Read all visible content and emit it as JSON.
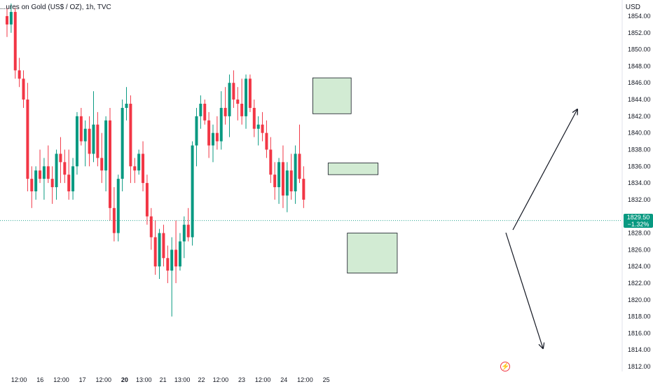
{
  "header": {
    "title": "...ures on Gold (US$ / OZ), 1h, TVC",
    "currency": "USD"
  },
  "price_badge": {
    "price": "1829.50",
    "change": "−1.32%"
  },
  "chart_data": {
    "type": "candlestick",
    "title": "...ures on Gold (US$ / OZ), 1h, TVC",
    "ylabel": "USD",
    "ylim": [
      1811,
      1856
    ],
    "yticks": [
      1812,
      1814,
      1816,
      1818,
      1820,
      1822,
      1824,
      1826,
      1828,
      1830,
      1832,
      1834,
      1836,
      1838,
      1840,
      1842,
      1844,
      1846,
      1848,
      1850,
      1852,
      1854
    ],
    "xticks": [
      {
        "label": "12:00",
        "x": 3.5,
        "bold": false
      },
      {
        "label": "16",
        "x": 9,
        "bold": false
      },
      {
        "label": "12:00",
        "x": 14.5,
        "bold": false
      },
      {
        "label": "17",
        "x": 20,
        "bold": false
      },
      {
        "label": "12:00",
        "x": 25.5,
        "bold": false
      },
      {
        "label": "20",
        "x": 31,
        "bold": true
      },
      {
        "label": "13:00",
        "x": 36,
        "bold": false
      },
      {
        "label": "21",
        "x": 41,
        "bold": false
      },
      {
        "label": "13:00",
        "x": 46,
        "bold": false
      },
      {
        "label": "22",
        "x": 51,
        "bold": false
      },
      {
        "label": "12:00",
        "x": 56,
        "bold": false
      },
      {
        "label": "23",
        "x": 61.5,
        "bold": false
      },
      {
        "label": "12:00",
        "x": 67,
        "bold": false
      },
      {
        "label": "24",
        "x": 72.5,
        "bold": false
      },
      {
        "label": "12:00",
        "x": 78,
        "bold": false
      },
      {
        "label": "25",
        "x": 83.5,
        "bold": false
      }
    ],
    "xlim": [
      -1,
      85
    ],
    "last_price": 1829.5,
    "candles": [
      [
        0,
        1854.0,
        1855.0,
        1851.5,
        1853.0
      ],
      [
        1,
        1853.0,
        1855.5,
        1852.0,
        1854.5
      ],
      [
        2,
        1854.5,
        1855.0,
        1846.5,
        1847.5
      ],
      [
        3,
        1847.5,
        1849.0,
        1845.5,
        1846.5
      ],
      [
        4,
        1846.5,
        1847.5,
        1843.0,
        1844.0
      ],
      [
        5,
        1844.0,
        1846.0,
        1833.0,
        1834.5
      ],
      [
        6,
        1834.5,
        1836.0,
        1831.0,
        1833.0
      ],
      [
        7,
        1833.0,
        1836.0,
        1832.0,
        1835.5
      ],
      [
        8,
        1835.5,
        1838.0,
        1834.0,
        1834.5
      ],
      [
        9,
        1834.5,
        1837.0,
        1832.0,
        1836.0
      ],
      [
        10,
        1836.0,
        1838.5,
        1834.0,
        1834.5
      ],
      [
        11,
        1834.5,
        1836.0,
        1831.5,
        1833.5
      ],
      [
        12,
        1833.5,
        1838.0,
        1832.0,
        1837.5
      ],
      [
        13,
        1837.5,
        1839.5,
        1834.0,
        1836.5
      ],
      [
        14,
        1836.5,
        1838.0,
        1834.0,
        1835.0
      ],
      [
        15,
        1835.0,
        1838.0,
        1832.0,
        1833.0
      ],
      [
        16,
        1833.0,
        1837.0,
        1832.0,
        1836.0
      ],
      [
        17,
        1836.0,
        1842.5,
        1835.0,
        1842.0
      ],
      [
        18,
        1842.0,
        1843.0,
        1838.5,
        1839.0
      ],
      [
        19,
        1839.0,
        1841.5,
        1836.0,
        1840.5
      ],
      [
        20,
        1840.5,
        1842.0,
        1836.0,
        1837.5
      ],
      [
        21,
        1837.5,
        1845.0,
        1836.5,
        1841.0
      ],
      [
        22,
        1841.0,
        1842.5,
        1836.0,
        1837.0
      ],
      [
        23,
        1837.0,
        1840.0,
        1834.0,
        1835.5
      ],
      [
        24,
        1835.5,
        1842.0,
        1833.0,
        1841.5
      ],
      [
        25,
        1841.5,
        1843.0,
        1829.5,
        1831.0
      ],
      [
        26,
        1831.0,
        1833.5,
        1827.0,
        1828.0
      ],
      [
        27,
        1828.0,
        1835.0,
        1827.0,
        1834.5
      ],
      [
        28,
        1834.5,
        1844.0,
        1833.0,
        1843.0
      ],
      [
        29,
        1843.0,
        1845.5,
        1841.5,
        1843.5
      ],
      [
        30,
        1843.5,
        1844.5,
        1834.0,
        1836.0
      ],
      [
        31,
        1836.0,
        1837.0,
        1834.0,
        1835.5
      ],
      [
        32,
        1835.5,
        1838.0,
        1835.0,
        1837.5
      ],
      [
        33,
        1837.5,
        1839.0,
        1833.0,
        1834.0
      ],
      [
        34,
        1834.0,
        1835.0,
        1829.0,
        1830.0
      ],
      [
        35,
        1830.0,
        1831.0,
        1826.0,
        1827.5
      ],
      [
        36,
        1827.5,
        1829.5,
        1823.0,
        1824.0
      ],
      [
        37,
        1824.0,
        1828.5,
        1822.5,
        1828.0
      ],
      [
        38,
        1828.0,
        1829.0,
        1824.0,
        1825.0
      ],
      [
        39,
        1825.0,
        1826.5,
        1822.0,
        1823.5
      ],
      [
        40,
        1823.5,
        1827.5,
        1818.0,
        1826.0
      ],
      [
        41,
        1826.0,
        1829.5,
        1822.0,
        1824.0
      ],
      [
        42,
        1824.0,
        1828.0,
        1823.5,
        1827.0
      ],
      [
        43,
        1827.0,
        1830.0,
        1825.0,
        1829.0
      ],
      [
        44,
        1829.0,
        1831.0,
        1827.0,
        1827.5
      ],
      [
        45,
        1827.5,
        1839.0,
        1826.5,
        1838.5
      ],
      [
        46,
        1838.5,
        1843.0,
        1836.0,
        1842.0
      ],
      [
        47,
        1842.0,
        1844.5,
        1840.5,
        1843.5
      ],
      [
        48,
        1843.5,
        1844.0,
        1841.0,
        1841.5
      ],
      [
        49,
        1841.5,
        1842.5,
        1837.0,
        1838.5
      ],
      [
        50,
        1838.5,
        1841.0,
        1836.5,
        1840.0
      ],
      [
        51,
        1840.0,
        1842.0,
        1838.0,
        1839.0
      ],
      [
        52,
        1839.0,
        1845.0,
        1838.0,
        1843.0
      ],
      [
        53,
        1843.0,
        1845.5,
        1841.0,
        1842.0
      ],
      [
        54,
        1842.0,
        1847.0,
        1839.5,
        1846.0
      ],
      [
        55,
        1846.0,
        1847.5,
        1843.0,
        1844.0
      ],
      [
        56,
        1844.0,
        1845.5,
        1841.5,
        1843.5
      ],
      [
        57,
        1843.5,
        1846.5,
        1841.0,
        1842.0
      ],
      [
        58,
        1842.0,
        1847.0,
        1840.5,
        1846.5
      ],
      [
        59,
        1846.5,
        1847.0,
        1842.5,
        1843.0
      ],
      [
        60,
        1843.0,
        1844.0,
        1839.5,
        1840.5
      ],
      [
        61,
        1840.5,
        1842.0,
        1838.5,
        1841.0
      ],
      [
        62,
        1841.0,
        1842.5,
        1839.0,
        1840.0
      ],
      [
        63,
        1840.0,
        1841.5,
        1837.0,
        1838.0
      ],
      [
        64,
        1838.0,
        1839.5,
        1834.0,
        1835.0
      ],
      [
        65,
        1835.0,
        1836.5,
        1832.0,
        1833.5
      ],
      [
        66,
        1833.5,
        1837.0,
        1831.5,
        1836.5
      ],
      [
        67,
        1836.5,
        1838.5,
        1831.0,
        1832.5
      ],
      [
        68,
        1832.5,
        1836.5,
        1830.5,
        1835.5
      ],
      [
        69,
        1835.5,
        1837.5,
        1832.0,
        1833.0
      ],
      [
        70,
        1833.0,
        1838.5,
        1831.5,
        1837.5
      ],
      [
        71,
        1837.5,
        1841.0,
        1834.0,
        1834.5
      ],
      [
        72,
        1834.5,
        1836.0,
        1831.0,
        1832.0
      ]
    ],
    "zones": [
      {
        "x0": 80,
        "x1": 90,
        "y0": 1842.3,
        "y1": 1846.6
      },
      {
        "x0": 84,
        "x1": 97,
        "y0": 1835.0,
        "y1": 1836.4
      },
      {
        "x0": 89,
        "x1": 102,
        "y0": 1823.2,
        "y1": 1828.0
      }
    ]
  }
}
